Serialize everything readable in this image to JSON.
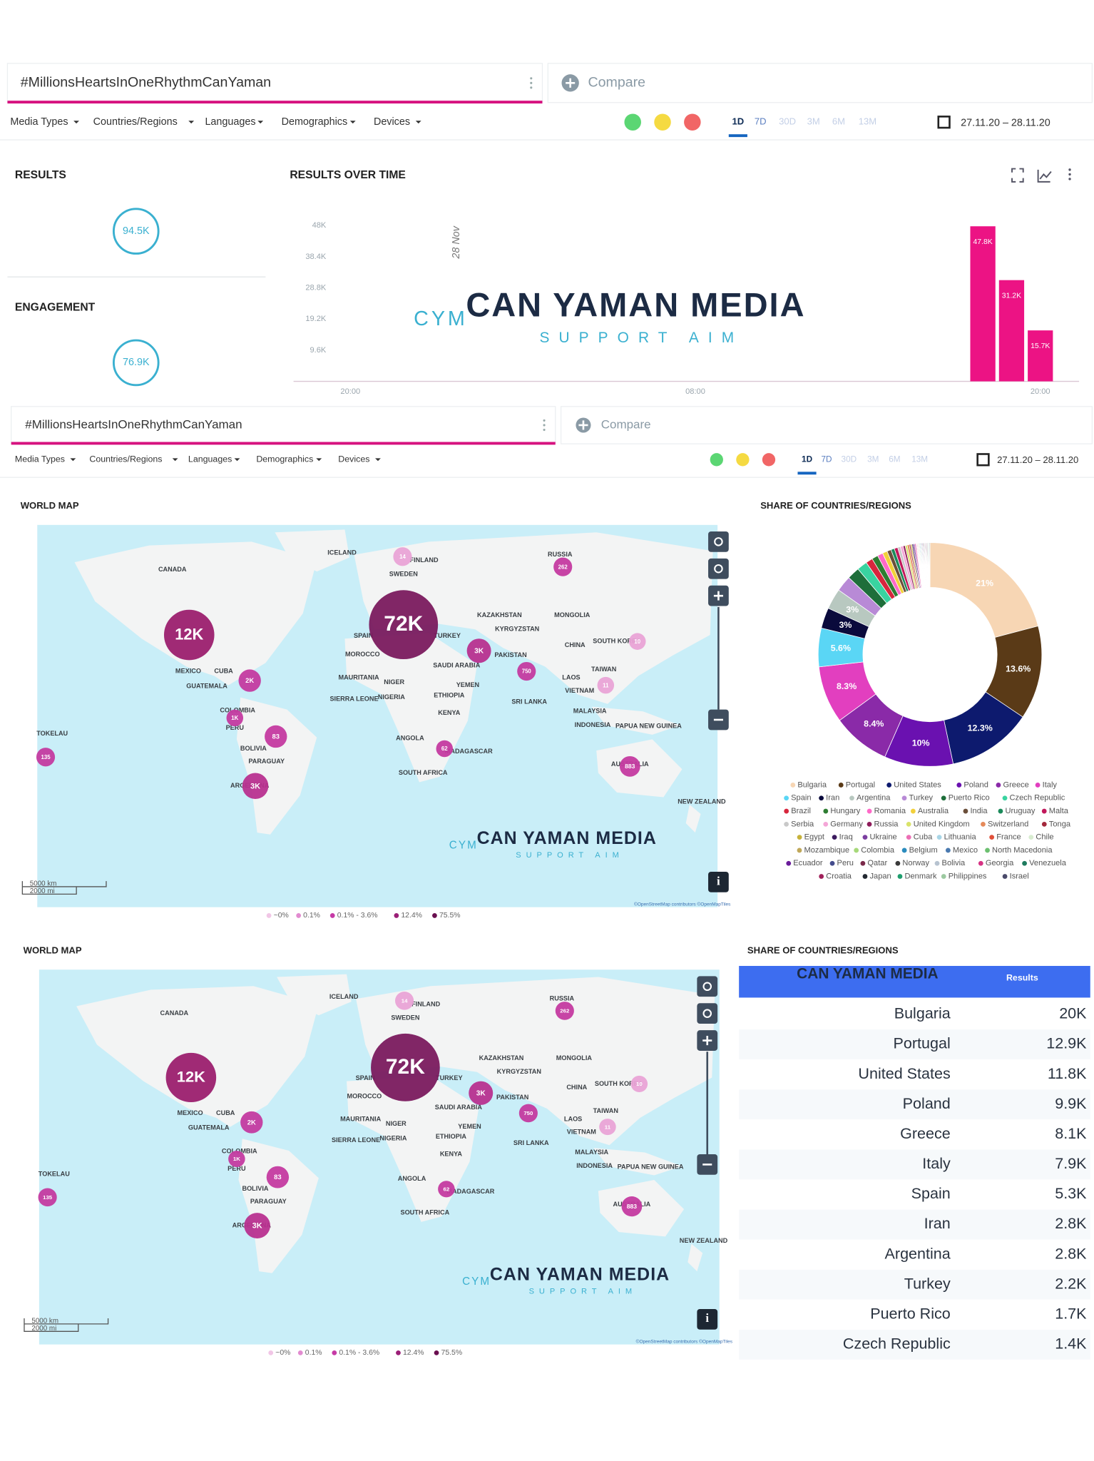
{
  "toolbars": [
    {
      "query": "#MillionsHeartsInOneRhythmCanYaman",
      "compare": "Compare",
      "filters": [
        "Media Types",
        "Countries/Regions",
        "Languages",
        "Demographics",
        "Devices"
      ],
      "periods": [
        "1D",
        "7D",
        "30D",
        "3M",
        "6M",
        "13M"
      ],
      "date_range": "27.11.20 – 28.11.20"
    },
    {
      "query": "#MillionsHeartsInOneRhythmCanYaman",
      "compare": "Compare",
      "filters": [
        "Media Types",
        "Countries/Regions",
        "Languages",
        "Demographics",
        "Devices"
      ],
      "periods": [
        "1D",
        "7D",
        "30D",
        "3M",
        "6M",
        "13M"
      ],
      "date_range": "27.11.20 – 28.11.20"
    }
  ],
  "results": {
    "title": "RESULTS",
    "value": "94.5K"
  },
  "engagement": {
    "title": "ENGAGEMENT",
    "value": "76.9K"
  },
  "watermark": {
    "mark": "CYM",
    "name": "CAN YAMAN MEDIA",
    "tagline": "SUPPORT AIM"
  },
  "chart_data": [
    {
      "type": "bar",
      "title": "RESULTS OVER TIME",
      "annotation": "28 Nov",
      "categories": [
        null,
        null,
        "20:00",
        null,
        null,
        null,
        null,
        null,
        null,
        null,
        null,
        null,
        null,
        null,
        "08:00",
        null,
        null,
        null,
        null,
        null,
        null,
        null,
        null,
        null,
        null,
        null,
        "20:00"
      ],
      "values": [
        0,
        0,
        0,
        0,
        0,
        0,
        0,
        0,
        0,
        0,
        0,
        0,
        0,
        0,
        0,
        0,
        0,
        0,
        0,
        0,
        0,
        0,
        0,
        0,
        47800,
        31200,
        15700
      ],
      "value_labels": [
        null,
        null,
        null,
        null,
        null,
        null,
        null,
        null,
        null,
        null,
        null,
        null,
        null,
        null,
        null,
        null,
        null,
        null,
        null,
        null,
        null,
        null,
        null,
        null,
        "47.8K",
        "31.2K",
        "15.7K"
      ],
      "color": "#ec1384",
      "ylim": [
        0,
        48000
      ],
      "yticks": [
        {
          "value": 9600,
          "label": "9.6K"
        },
        {
          "value": 19200,
          "label": "19.2K"
        },
        {
          "value": 28800,
          "label": "28.8K"
        },
        {
          "value": 38400,
          "label": "38.4K"
        },
        {
          "value": 48000,
          "label": "48K"
        }
      ]
    },
    {
      "type": "pie",
      "donut": true,
      "title": "SHARE OF COUNTRIES/REGIONS",
      "categories": [
        "Bulgaria",
        "Portugal",
        "United States",
        "Poland",
        "Greece",
        "Italy",
        "Spain",
        "Iran",
        "Argentina",
        "Turkey",
        "Puerto Rico",
        "Czech Republic",
        "Brazil",
        "Hungary",
        "Romania",
        "Australia",
        "India",
        "Uruguay",
        "Malta",
        "Serbia",
        "Germany",
        "Russia",
        "United Kingdom",
        "Switzerland",
        "Tonga",
        "Egypt",
        "Iraq",
        "Ukraine",
        "Cuba",
        "Lithuania",
        "France",
        "Chile",
        "Mozambique",
        "Colombia",
        "Belgium",
        "Mexico",
        "North Macedonia",
        "Ecuador",
        "Peru",
        "Qatar",
        "Norway",
        "Bolivia",
        "Georgia",
        "Venezuela",
        "Croatia",
        "Japan",
        "Denmark",
        "Philippines",
        "Israel"
      ],
      "values": [
        21,
        13.6,
        12.3,
        10,
        8.4,
        8.3,
        5.6,
        3,
        3,
        2.3,
        1.8,
        1.5,
        1,
        0.9,
        0.8,
        0.7,
        0.6,
        0.5,
        0.5,
        0.4,
        0.4,
        0.3,
        0.3,
        0.3,
        0.2,
        0.2,
        0.2,
        0.2,
        0.2,
        0.1,
        0.1,
        0.1,
        0.1,
        0.1,
        0.1,
        0.1,
        0.1,
        0.1,
        0.1,
        0.1,
        0.1,
        0.1,
        0.1,
        0.1,
        0.1,
        0.1,
        0.1,
        0.1,
        0.1
      ],
      "value_labels": [
        "21%",
        "13.6%",
        "12.3%",
        "10%",
        "8.4%",
        "8.3%",
        "5.6%",
        "3%",
        "3%",
        null,
        null,
        null,
        null,
        null,
        null,
        null,
        null,
        null,
        null,
        null,
        null,
        null,
        null,
        null,
        null,
        null,
        null,
        null,
        null,
        null,
        null,
        null,
        null,
        null,
        null,
        null,
        null,
        null,
        null,
        null,
        null,
        null,
        null,
        null,
        null,
        null,
        null,
        null,
        null
      ],
      "colors": [
        "#f7d6b4",
        "#5a3a17",
        "#0d1a6e",
        "#6a11b0",
        "#8a2aa8",
        "#e23fbf",
        "#5ad6f5",
        "#0a0a3c",
        "#b8c8c0",
        "#b88ad6",
        "#1e6e3a",
        "#39d3a0",
        "#d7263d",
        "#2e7d32",
        "#ff69c8",
        "#f2d03b",
        "#6b4f3a",
        "#1b8a5a",
        "#c2185b",
        "#c9c9c9",
        "#f4a6d7",
        "#8e1b5a",
        "#d9e36a",
        "#e58a5a",
        "#a3283c",
        "#c7b23a",
        "#3b1a5e",
        "#7b3fa0",
        "#ec6fb5",
        "#a8d5e6",
        "#e0503a",
        "#d8ecd0",
        "#c0a85a",
        "#a7d97a",
        "#2b8cbe",
        "#4a7ab0",
        "#6cc070",
        "#6a1b9a",
        "#444c8c",
        "#7a2a4a",
        "#3a3a3a",
        "#b7c3d0",
        "#d63384",
        "#1e7b5e",
        "#a0205a",
        "#222831",
        "#1f9e6e",
        "#9cc9a0",
        "#4a4a6a"
      ]
    }
  ],
  "maps": [
    {
      "title": "WORLD MAP",
      "places": [
        "CANADA",
        "ICELAND",
        "FINLAND",
        "SWEDEN",
        "RUSSIA",
        "KAZAKHSTAN",
        "MONGOLIA",
        "KYRGYZSTAN",
        "CHINA",
        "SOUTH KOREA",
        "SPAIN",
        "TURKEY",
        "MOROCCO",
        "PAKISTAN",
        "SAUDI ARABIA",
        "TAIWAN",
        "MAURITANIA",
        "NIGER",
        "YEMEN",
        "LAOS",
        "VIETNAM",
        "SIERRA LEONE",
        "NIGERIA",
        "ETHIOPIA",
        "SRI LANKA",
        "KENYA",
        "MALAYSIA",
        "INDONESIA",
        "PAPUA NEW GUINEA",
        "MEXICO",
        "CUBA",
        "GUATEMALA",
        "COLOMBIA",
        "PERU",
        "BOLIVIA",
        "PARAGUAY",
        "ARGENTINA",
        "TOKELAU",
        "ANGOLA",
        "MADAGASCAR",
        "SOUTH AFRICA",
        "AUSTRALIA",
        "NEW ZEALAND"
      ],
      "bubbles": {
        "values": [
          72000,
          12000,
          3000,
          2000,
          1000,
          83,
          135,
          3000,
          262,
          14,
          10,
          750,
          11,
          62,
          883
        ],
        "value_labels": [
          "72K",
          "12K",
          "3K",
          "2K",
          "1K",
          "83",
          "135",
          "3K",
          "262",
          "14",
          "10",
          "750",
          "11",
          "62",
          "883"
        ],
        "colors": [
          "#7a1a5e",
          "#9b1f6e",
          "#b8308f",
          "#c43aa0",
          "#c43aa0",
          "#c43aa0",
          "#c43aa0",
          "#b8308f",
          "#c43aa0",
          "#e9a3d6",
          "#e9a3d6",
          "#c43aa0",
          "#e9a3d6",
          "#c43aa0",
          "#c43aa0"
        ]
      },
      "legend": {
        "labels": [
          "~0%",
          "0.1%",
          "0.1% - 3.6%",
          "12.4%",
          "75.5%"
        ],
        "colors": [
          "#f1c6e6",
          "#e28bd0",
          "#c63aa6",
          "#9b1f77",
          "#6a0f50"
        ]
      },
      "scale": [
        "5000 km",
        "2000 mi"
      ],
      "attribution": "©OpenStreetMap contributors ©OpenMapTiles"
    },
    {
      "title": "WORLD MAP",
      "places": [
        "CANADA",
        "ICELAND",
        "FINLAND",
        "SWEDEN",
        "RUSSIA",
        "KAZAKHSTAN",
        "MONGOLIA",
        "KYRGYZSTAN",
        "CHINA",
        "SOUTH KOREA",
        "SPAIN",
        "TURKEY",
        "MOROCCO",
        "PAKISTAN",
        "SAUDI ARABIA",
        "TAIWAN",
        "MAURITANIA",
        "NIGER",
        "YEMEN",
        "LAOS",
        "VIETNAM",
        "SIERRA LEONE",
        "NIGERIA",
        "ETHIOPIA",
        "SRI LANKA",
        "KENYA",
        "MALAYSIA",
        "INDONESIA",
        "PAPUA NEW GUINEA",
        "MEXICO",
        "CUBA",
        "GUATEMALA",
        "COLOMBIA",
        "PERU",
        "BOLIVIA",
        "PARAGUAY",
        "ARGENTINA",
        "TOKELAU",
        "ANGOLA",
        "MADAGASCAR",
        "SOUTH AFRICA",
        "AUSTRALIA",
        "NEW ZEALAND"
      ],
      "bubbles": {
        "values": [
          72000,
          12000,
          3000,
          2000,
          1000,
          83,
          135,
          3000,
          262,
          14,
          10,
          750,
          11,
          62,
          883
        ],
        "value_labels": [
          "72K",
          "12K",
          "3K",
          "2K",
          "1K",
          "83",
          "135",
          "3K",
          "262",
          "14",
          "10",
          "750",
          "11",
          "62",
          "883"
        ],
        "colors": [
          "#7a1a5e",
          "#9b1f6e",
          "#b8308f",
          "#c43aa0",
          "#c43aa0",
          "#c43aa0",
          "#c43aa0",
          "#b8308f",
          "#c43aa0",
          "#e9a3d6",
          "#e9a3d6",
          "#c43aa0",
          "#e9a3d6",
          "#c43aa0",
          "#c43aa0"
        ]
      },
      "legend": {
        "labels": [
          "~0%",
          "0.1%",
          "0.1% - 3.6%",
          "12.4%",
          "75.5%"
        ],
        "colors": [
          "#f1c6e6",
          "#e28bd0",
          "#c63aa6",
          "#9b1f77",
          "#6a0f50"
        ]
      },
      "scale": [
        "5000 km",
        "2000 mi"
      ],
      "attribution": "©OpenStreetMap contributors ©OpenMapTiles"
    }
  ],
  "table": {
    "title": "SHARE OF COUNTRIES/REGIONS",
    "header": "Results",
    "rows": [
      [
        "Bulgaria",
        "20K"
      ],
      [
        "Portugal",
        "12.9K"
      ],
      [
        "United States",
        "11.8K"
      ],
      [
        "Poland",
        "9.9K"
      ],
      [
        "Greece",
        "8.1K"
      ],
      [
        "Italy",
        "7.9K"
      ],
      [
        "Spain",
        "5.3K"
      ],
      [
        "Iran",
        "2.8K"
      ],
      [
        "Argentina",
        "2.8K"
      ],
      [
        "Turkey",
        "2.2K"
      ],
      [
        "Puerto Rico",
        "1.7K"
      ],
      [
        "Czech Republic",
        "1.4K"
      ]
    ]
  }
}
